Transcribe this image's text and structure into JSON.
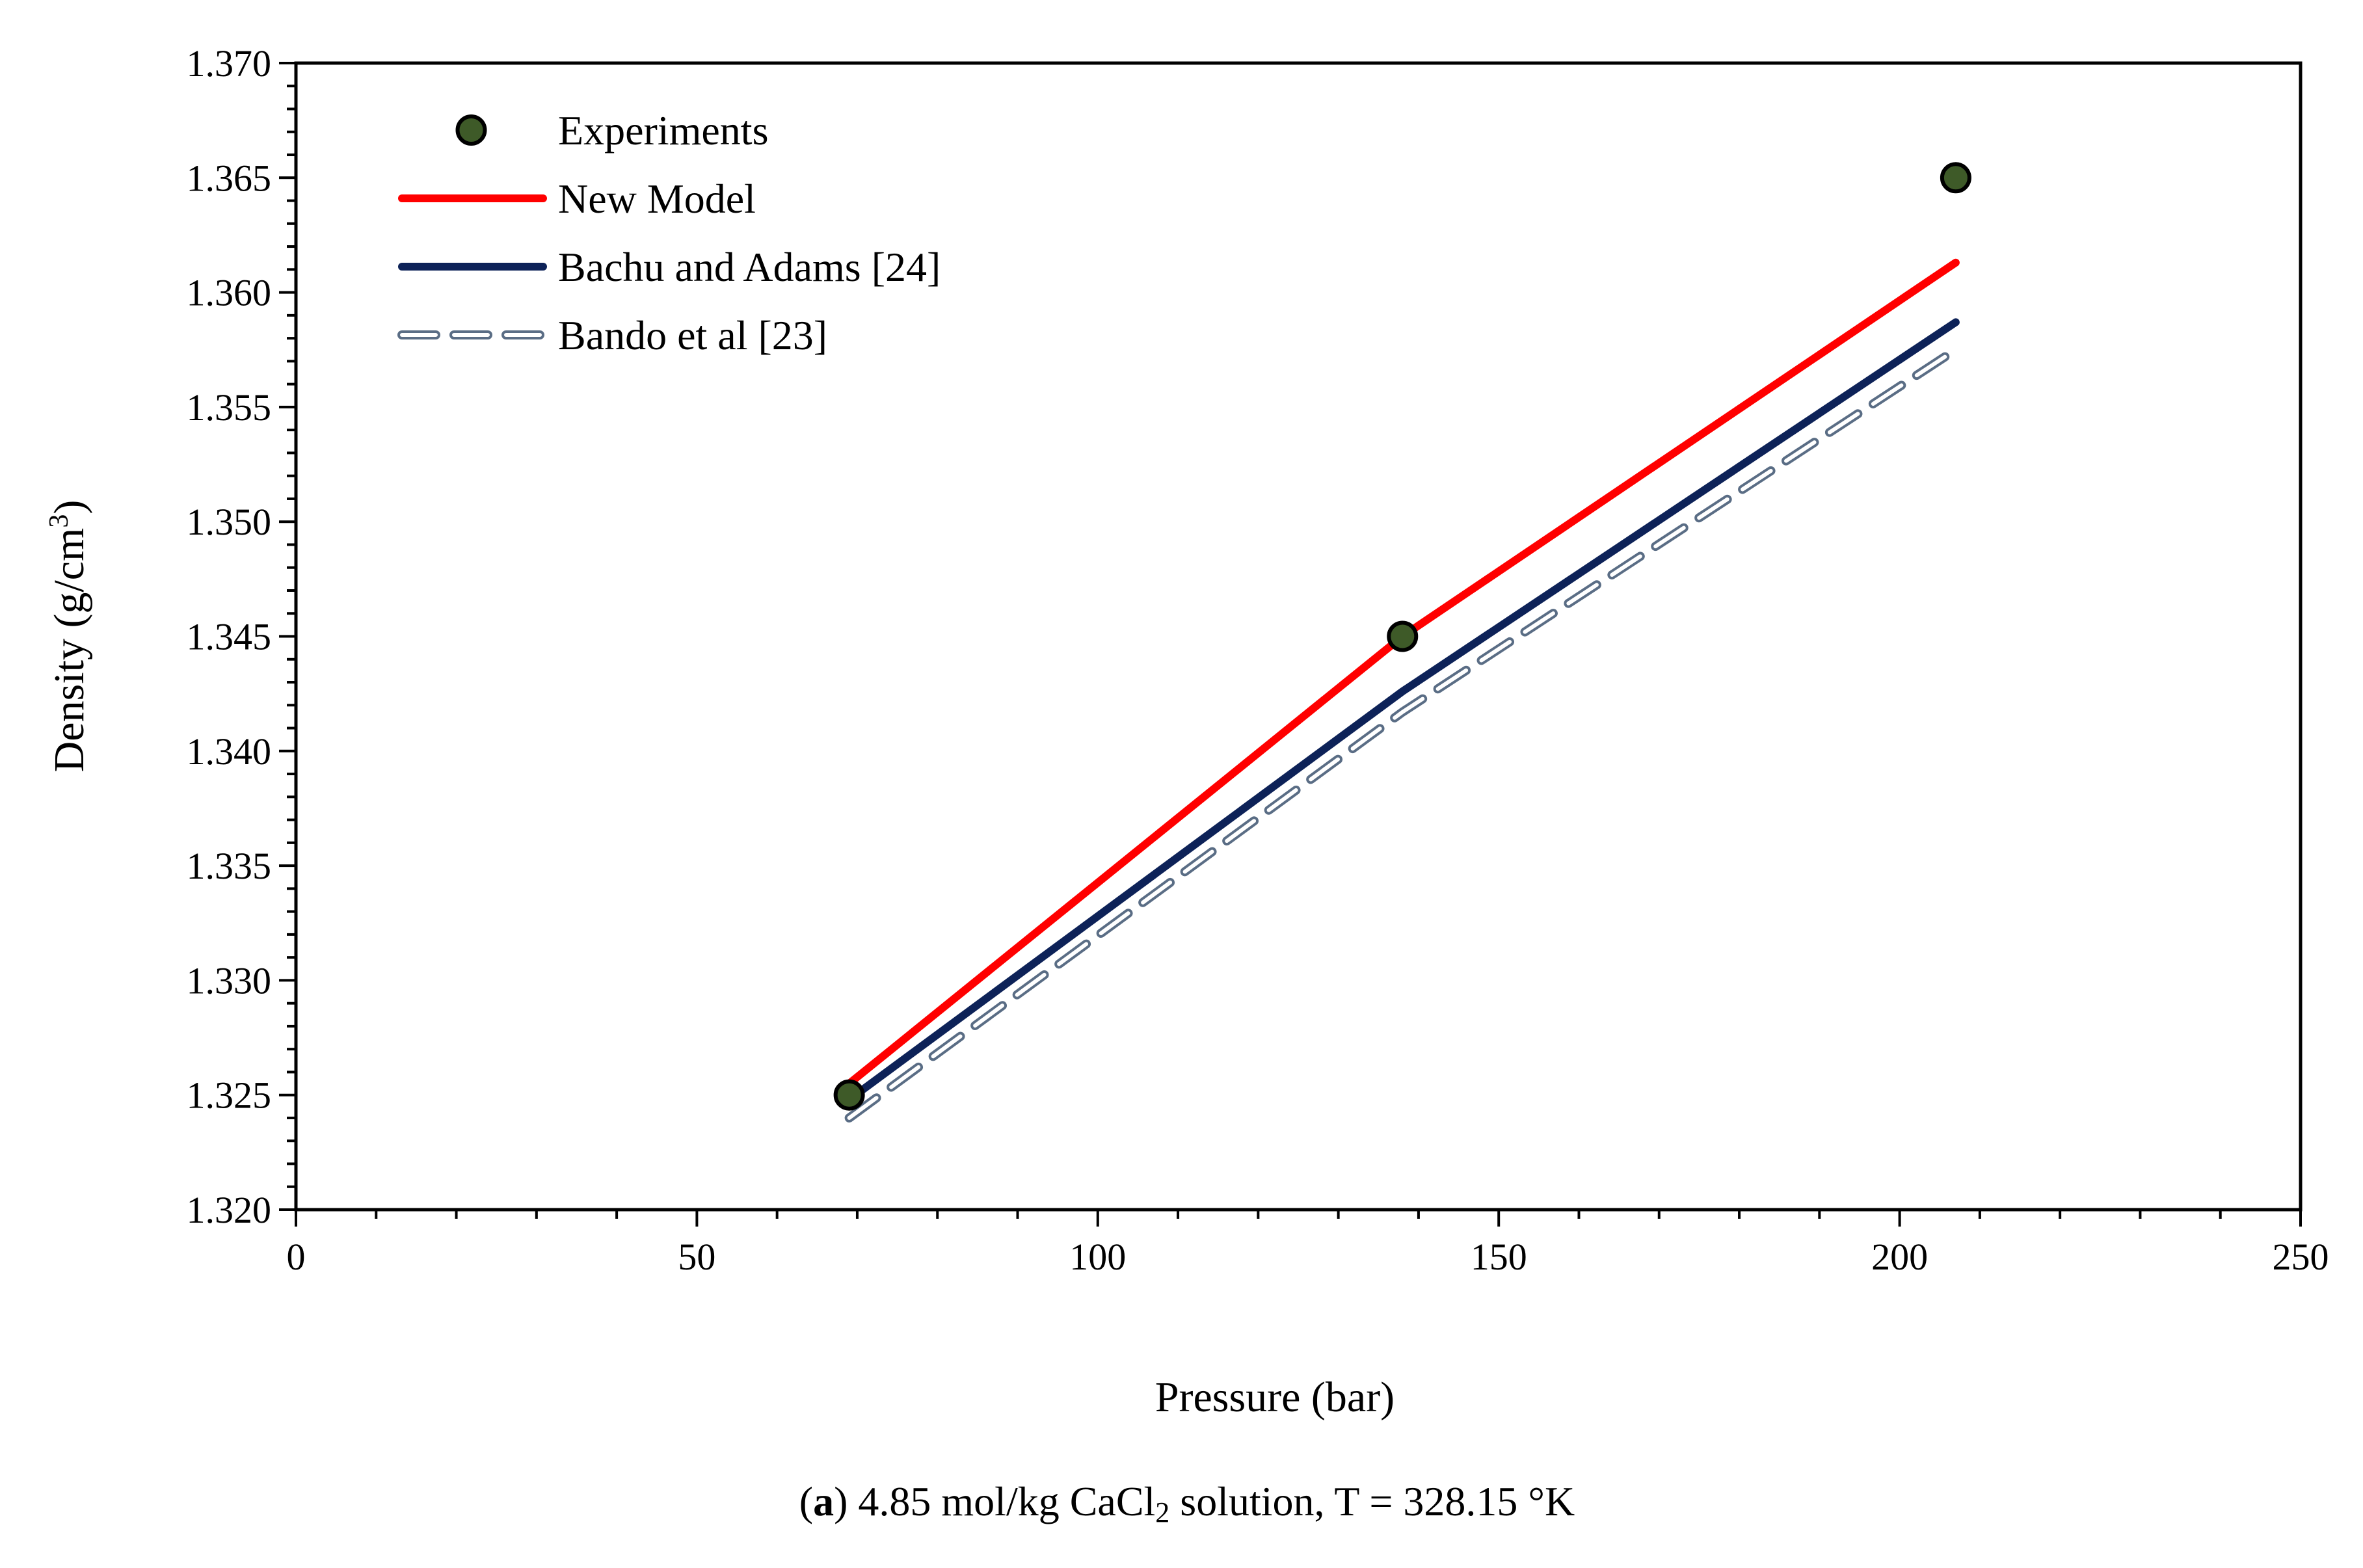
{
  "chart_data": {
    "type": "line",
    "title": "",
    "xlabel": "Pressure (bar)",
    "ylabel": "Density (g/cm",
    "ylabel_sup": "3",
    "ylabel_end": ")",
    "xlim": [
      0,
      250
    ],
    "ylim": [
      1.32,
      1.37
    ],
    "x_major_step": 50,
    "x_minor_step": 10,
    "y_major_step": 0.005,
    "y_minor_step": 0.001,
    "y_tick_decimals": 3,
    "grid": false,
    "legend_position": "top-left",
    "series": [
      {
        "name": "Experiments",
        "kind": "markers",
        "color": "#3e5a28",
        "edge_color": "#000000",
        "points": [
          {
            "x": 69,
            "y": 1.325
          },
          {
            "x": 138,
            "y": 1.345
          },
          {
            "x": 207,
            "y": 1.365
          }
        ]
      },
      {
        "name": "New Model",
        "kind": "line",
        "color": "#ff0000",
        "points": [
          {
            "x": 69,
            "y": 1.3255
          },
          {
            "x": 138,
            "y": 1.345
          },
          {
            "x": 207,
            "y": 1.3613
          }
        ]
      },
      {
        "name": "Bachu and Adams [24]",
        "kind": "line",
        "color": "#0d2258",
        "points": [
          {
            "x": 69,
            "y": 1.3248
          },
          {
            "x": 138,
            "y": 1.3426
          },
          {
            "x": 207,
            "y": 1.3587
          }
        ]
      },
      {
        "name": "Bando et al [23]",
        "kind": "dashed",
        "color": "#5a6d85",
        "points": [
          {
            "x": 69,
            "y": 1.324
          },
          {
            "x": 138,
            "y": 1.3417
          },
          {
            "x": 207,
            "y": 1.3575
          }
        ]
      }
    ]
  },
  "caption": {
    "open": "(",
    "bold": "a",
    "text": ") 4.85 mol/kg CaCl",
    "sub": "2",
    "end": " solution, T = 328.15 °K"
  }
}
